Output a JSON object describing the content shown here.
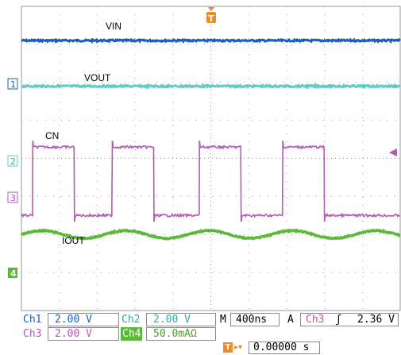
{
  "colors": {
    "ch1": "#1f5fb5",
    "ch2": "#63c9c9",
    "ch3": "#b35ab3",
    "ch4": "#5cb83a",
    "trigger": "#f08a24",
    "grid": "#9a9a9a"
  },
  "chart_data": {
    "type": "line",
    "x": {
      "unit": "ns",
      "divisions": 10,
      "per_div": 400
    },
    "y": {
      "divisions": 8
    },
    "grid": true,
    "series": [
      {
        "name": "VIN",
        "channel": "1",
        "level_div": 7.1
      },
      {
        "name": "VOUT",
        "channel": "2",
        "level_div": 5.9
      },
      {
        "name": "CN",
        "channel": "3",
        "high_div": 4.3,
        "low_div": 2.5,
        "rising_edges_div": [
          0.3,
          2.4,
          4.7,
          6.9
        ],
        "falling_edges_div": [
          1.4,
          3.5,
          5.8,
          8.0
        ]
      },
      {
        "name": "IOUT",
        "channel": "4",
        "center_div": 2.0,
        "ripple_div": 0.1,
        "ripple_period_div": 2.2
      }
    ],
    "markers": {
      "ch1": "1",
      "ch2": "2",
      "ch3": "3",
      "ch4": "4",
      "trigger_top": "T"
    }
  },
  "readout": {
    "ch1_name": "Ch1",
    "ch1_scale": "2.00 V",
    "ch2_name": "Ch2",
    "ch2_scale": "2.00 V",
    "ch3_name": "Ch3",
    "ch3_scale": "2.00 V",
    "ch4_name": "Ch4",
    "ch4_scale": "50.0mAΩ",
    "m_label": "M",
    "timebase": "400ns",
    "a_label": "A",
    "trig_source": "Ch3",
    "trig_slope": "ʃ",
    "trig_level": "2.36 V",
    "trig_pos_T": "T",
    "trig_pos": "0.00000 s"
  }
}
